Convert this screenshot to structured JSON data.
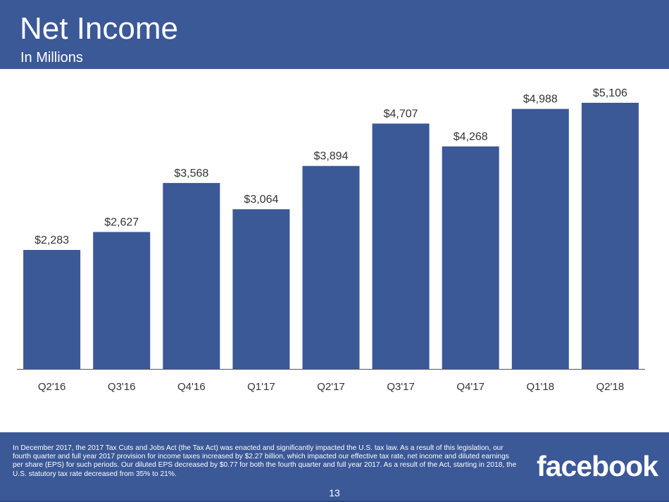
{
  "header": {
    "title": "Net Income",
    "subtitle": "In Millions"
  },
  "colors": {
    "brand": "#3b5897",
    "bar": "#3b5897",
    "text": "#333333"
  },
  "chart_data": {
    "type": "bar",
    "categories": [
      "Q2'16",
      "Q3'16",
      "Q4'16",
      "Q1'17",
      "Q2'17",
      "Q3'17",
      "Q4'17",
      "Q1'18",
      "Q2'18"
    ],
    "values": [
      2283,
      2627,
      3568,
      3064,
      3894,
      4707,
      4268,
      4988,
      5106
    ],
    "data_labels": [
      "$2,283",
      "$2,627",
      "$3,568",
      "$3,064",
      "$3,894",
      "$4,707",
      "$4,268",
      "$4,988",
      "$5,106"
    ],
    "ylim": [
      0,
      5106
    ],
    "grid": false,
    "legend": "none"
  },
  "footer": {
    "footnote": "In December 2017, the 2017 Tax Cuts and Jobs Act (the Tax Act) was enacted and significantly impacted the U.S. tax law. As a result of this legislation, our fourth quarter and full year 2017 provision for income taxes increased by $2.27 billion, which impacted our effective tax rate, net income and diluted earnings per share (EPS) for such periods. Our diluted EPS decreased by $0.77 for both the fourth quarter and full year 2017. As a result of the Act, starting in 2018, the U.S. statutory tax rate decreased from 35% to 21%.",
    "logo_text": "facebook",
    "page_number": "13"
  }
}
